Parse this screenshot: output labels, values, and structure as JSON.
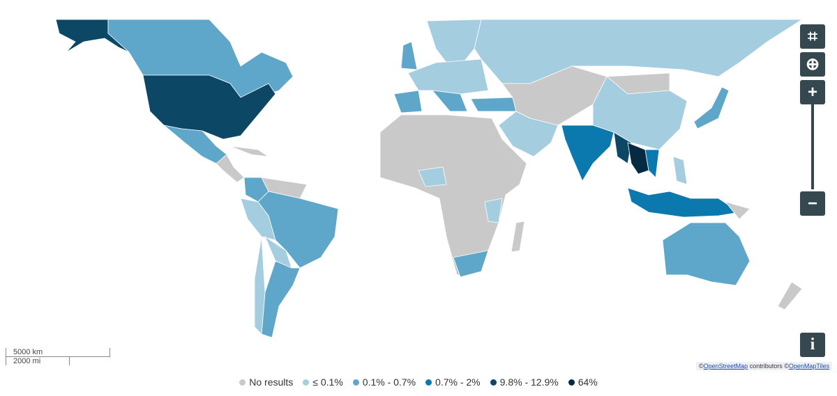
{
  "legend": [
    {
      "label": "No results",
      "color": "#c9c9c9"
    },
    {
      "label": "≤ 0.1%",
      "color": "#a5cde0"
    },
    {
      "label": "0.1% - 0.7%",
      "color": "#5ea7ca"
    },
    {
      "label": "0.7% - 2%",
      "color": "#0b78ae"
    },
    {
      "label": "9.8% - 12.9%",
      "color": "#0c4766"
    },
    {
      "label": "64%",
      "color": "#062a42"
    }
  ],
  "scale": {
    "km": "5000 km",
    "mi": "2000 mi"
  },
  "attribution": {
    "osm_prefix": "©",
    "osm": "OpenStreetMap",
    "contributors": "contributors",
    "omt_prefix": "©",
    "omt": "OpenMapTiles"
  }
}
